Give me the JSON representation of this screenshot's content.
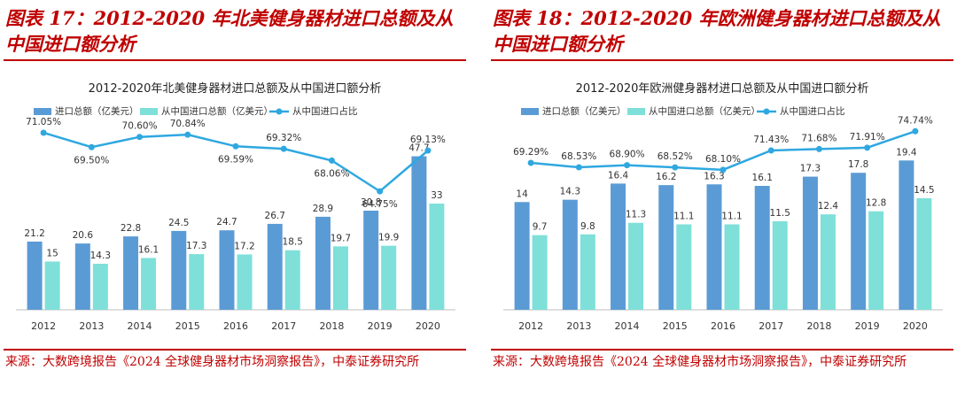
{
  "panels": [
    {
      "figure_title": "图表 17：2012-2020 年北美健身器材进口总额及从中国进口额分析",
      "source": "来源：大数跨境报告《2024 全球健身器材市场洞察报告》，中泰证券研究所"
    },
    {
      "figure_title": "图表 18：2012-2020 年欧洲健身器材进口总额及从中国进口额分析",
      "source": "来源：大数跨境报告《2024 全球健身器材市场洞察报告》，中泰证券研究所"
    }
  ],
  "chart_data": [
    {
      "type": "bar",
      "title": "2012-2020年北美健身器材进口总额及从中国进口额分析",
      "categories": [
        "2012",
        "2013",
        "2014",
        "2015",
        "2016",
        "2017",
        "2018",
        "2019",
        "2020"
      ],
      "series": [
        {
          "name": "进口总额（亿美元）",
          "kind": "bar",
          "color": "#5b9bd5",
          "values": [
            21.2,
            20.6,
            22.8,
            24.5,
            24.7,
            26.7,
            28.9,
            30.8,
            47.7
          ],
          "labels": [
            "21.2",
            "20.6",
            "22.8",
            "24.5",
            "24.7",
            "26.7",
            "28.9",
            "30.8",
            "47.7"
          ]
        },
        {
          "name": "从中国进口总额（亿美元）",
          "kind": "bar",
          "color": "#7ee0d8",
          "values": [
            15,
            14.3,
            16.1,
            17.3,
            17.2,
            18.5,
            19.7,
            19.9,
            33
          ],
          "labels": [
            "15",
            "14.3",
            "16.1",
            "17.3",
            "17.2",
            "18.5",
            "19.7",
            "19.9",
            "33"
          ]
        },
        {
          "name": "从中国进口占比",
          "kind": "line",
          "color": "#2fa8e0",
          "values": [
            71.05,
            69.5,
            70.6,
            70.84,
            69.59,
            69.32,
            68.06,
            64.75,
            69.13
          ],
          "labels": [
            "71.05%",
            "69.50%",
            "70.60%",
            "70.84%",
            "69.59%",
            "69.32%",
            "68.06%",
            "64.75%",
            "69.13%"
          ]
        }
      ],
      "bar_ylim": [
        0,
        55
      ],
      "line_ylim": [
        62,
        72
      ],
      "xlabel": "",
      "ylabel": "",
      "legend": "top-left"
    },
    {
      "type": "bar",
      "title": "2012-2020年欧洲健身器材进口总额及从中国进口额分析",
      "categories": [
        "2012",
        "2013",
        "2014",
        "2015",
        "2016",
        "2017",
        "2018",
        "2019",
        "2020"
      ],
      "series": [
        {
          "name": "进口总额（亿美元）",
          "kind": "bar",
          "color": "#5b9bd5",
          "values": [
            14,
            14.3,
            16.4,
            16.2,
            16.3,
            16.1,
            17.3,
            17.8,
            19.4
          ],
          "labels": [
            "14",
            "14.3",
            "16.4",
            "16.2",
            "16.3",
            "16.1",
            "17.3",
            "17.8",
            "19.4"
          ]
        },
        {
          "name": "从中国进口总额（亿美元）",
          "kind": "bar",
          "color": "#7ee0d8",
          "values": [
            9.7,
            9.8,
            11.3,
            11.1,
            11.1,
            11.5,
            12.4,
            12.8,
            14.5
          ],
          "labels": [
            "9.7",
            "9.8",
            "11.3",
            "11.1",
            "11.1",
            "11.5",
            "12.4",
            "12.8",
            "14.5"
          ]
        },
        {
          "name": "从中国进口占比",
          "kind": "line",
          "color": "#2fa8e0",
          "values": [
            69.29,
            68.53,
            68.9,
            68.52,
            68.1,
            71.43,
            71.68,
            71.91,
            74.74
          ],
          "labels": [
            "69.29%",
            "68.53%",
            "68.90%",
            "68.52%",
            "68.10%",
            "71.43%",
            "71.68%",
            "71.91%",
            "74.74%"
          ]
        }
      ],
      "bar_ylim": [
        0,
        23
      ],
      "line_ylim": [
        60,
        76
      ],
      "xlabel": "",
      "ylabel": "",
      "legend": "top-left"
    }
  ]
}
